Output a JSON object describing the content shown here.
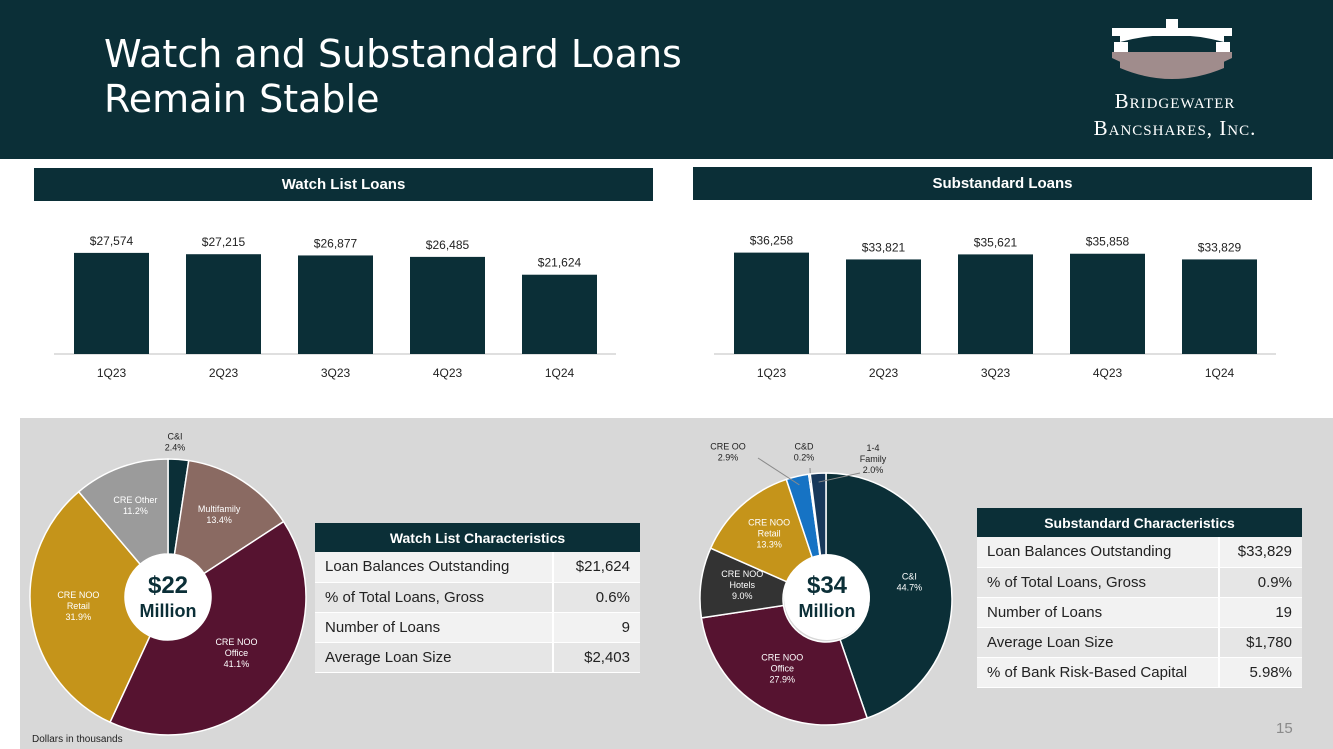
{
  "header": {
    "title_line1": "Watch and Substandard Loans",
    "title_line2": "Remain Stable",
    "logo_line1": "Bridgewater",
    "logo_line2": "Bancshares, Inc."
  },
  "watch_section_title": "Watch List Loans",
  "substandard_section_title": "Substandard Loans",
  "chart_data": [
    {
      "type": "bar",
      "categories": [
        "1Q23",
        "2Q23",
        "3Q23",
        "4Q23",
        "1Q24"
      ],
      "values": [
        27574,
        27215,
        26877,
        26485,
        21624
      ],
      "value_labels": [
        "$27,574",
        "$27,215",
        "$26,877",
        "$26,485",
        "$21,624"
      ],
      "title": "Watch List Loans",
      "color": "#0b2f37"
    },
    {
      "type": "bar",
      "categories": [
        "1Q23",
        "2Q23",
        "3Q23",
        "4Q23",
        "1Q24"
      ],
      "values": [
        36258,
        33821,
        35621,
        35858,
        33829
      ],
      "value_labels": [
        "$36,258",
        "$33,821",
        "$35,621",
        "$35,858",
        "$33,829"
      ],
      "title": "Substandard Loans",
      "color": "#0b2f37"
    },
    {
      "type": "pie",
      "center_amount": "$22",
      "center_unit": "Million",
      "slices": [
        {
          "label": "C&I",
          "value": 2.4,
          "pct": "2.4%",
          "color": "#0b2f37"
        },
        {
          "label": "Multifamily",
          "value": 13.4,
          "pct": "13.4%",
          "color": "#8a6a62"
        },
        {
          "label": "CRE NOO Office",
          "value": 41.1,
          "pct": "41.1%",
          "color": "#561330"
        },
        {
          "label": "CRE NOO Retail",
          "value": 31.9,
          "pct": "31.9%",
          "color": "#c5941a"
        },
        {
          "label": "CRE Other",
          "value": 11.2,
          "pct": "11.2%",
          "color": "#9b9b9b"
        }
      ]
    },
    {
      "type": "pie",
      "center_amount": "$34",
      "center_unit": "Million",
      "slices": [
        {
          "label": "C&I",
          "value": 44.7,
          "pct": "44.7%",
          "color": "#0b2f37"
        },
        {
          "label": "CRE NOO Office",
          "value": 27.9,
          "pct": "27.9%",
          "color": "#561330"
        },
        {
          "label": "CRE NOO Hotels",
          "value": 9.0,
          "pct": "9.0%",
          "color": "#333333"
        },
        {
          "label": "CRE NOO Retail",
          "value": 13.3,
          "pct": "13.3%",
          "color": "#c5941a"
        },
        {
          "label": "CRE OO",
          "value": 2.9,
          "pct": "2.9%",
          "color": "#1673c4"
        },
        {
          "label": "C&D",
          "value": 0.2,
          "pct": "0.2%",
          "color": "#8a8a8a"
        },
        {
          "label": "1-4 Family",
          "value": 2.0,
          "pct": "2.0%",
          "color": "#17385a"
        }
      ]
    }
  ],
  "watch_table": {
    "title": "Watch List Characteristics",
    "rows": [
      {
        "label": "Loan Balances Outstanding",
        "value": "$21,624"
      },
      {
        "label": "% of Total Loans, Gross",
        "value": "0.6%"
      },
      {
        "label": "Number of Loans",
        "value": "9"
      },
      {
        "label": "Average Loan Size",
        "value": "$2,403"
      }
    ]
  },
  "substandard_table": {
    "title": "Substandard Characteristics",
    "rows": [
      {
        "label": "Loan Balances Outstanding",
        "value": "$33,829"
      },
      {
        "label": "% of Total Loans, Gross",
        "value": "0.9%"
      },
      {
        "label": "Number of Loans",
        "value": "19"
      },
      {
        "label": "Average Loan Size",
        "value": "$1,780"
      },
      {
        "label": "% of Bank Risk-Based Capital",
        "value": "5.98%"
      }
    ]
  },
  "footnote": "Dollars in thousands",
  "page_number": "15"
}
